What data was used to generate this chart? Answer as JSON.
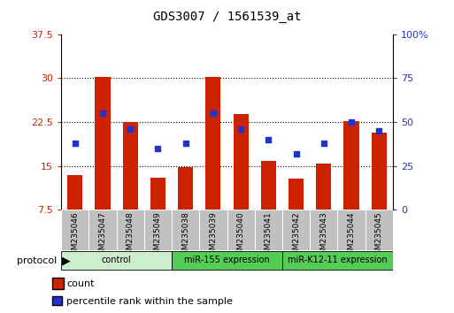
{
  "title": "GDS3007 / 1561539_at",
  "samples": [
    "GSM235046",
    "GSM235047",
    "GSM235048",
    "GSM235049",
    "GSM235038",
    "GSM235039",
    "GSM235040",
    "GSM235041",
    "GSM235042",
    "GSM235043",
    "GSM235044",
    "GSM235045"
  ],
  "count_values": [
    13.5,
    30.3,
    22.5,
    13.0,
    14.8,
    30.2,
    23.9,
    15.8,
    12.8,
    15.4,
    22.6,
    20.7
  ],
  "percentile_values_pct": [
    38,
    55,
    46,
    35,
    38,
    55,
    46,
    40,
    32,
    38,
    50,
    45
  ],
  "ylim_left": [
    7.5,
    37.5
  ],
  "ylim_right": [
    0,
    100
  ],
  "yticks_left": [
    7.5,
    15.0,
    22.5,
    30.0,
    37.5
  ],
  "yticks_left_labels": [
    "7.5",
    "15",
    "22.5",
    "30",
    "37.5"
  ],
  "yticks_right": [
    0,
    25,
    50,
    75,
    100
  ],
  "yticks_right_labels": [
    "0",
    "25",
    "50",
    "75",
    "100%"
  ],
  "group_labels": [
    "control",
    "miR-155 expression",
    "miR-K12-11 expression"
  ],
  "group_starts": [
    0,
    4,
    8
  ],
  "group_ends": [
    4,
    8,
    12
  ],
  "group_colors": [
    "#cceecc",
    "#55cc55",
    "#55cc55"
  ],
  "bar_color": "#cc2200",
  "dot_color": "#2233cc",
  "bar_width": 0.55,
  "left_tick_color": "#cc2200",
  "right_tick_color": "#2233cc",
  "grid_color": "#000000",
  "background_color": "#ffffff",
  "xtick_bg_color": "#c0c0c0",
  "legend_count_label": "count",
  "legend_pct_label": "percentile rank within the sample",
  "protocol_label": "protocol"
}
